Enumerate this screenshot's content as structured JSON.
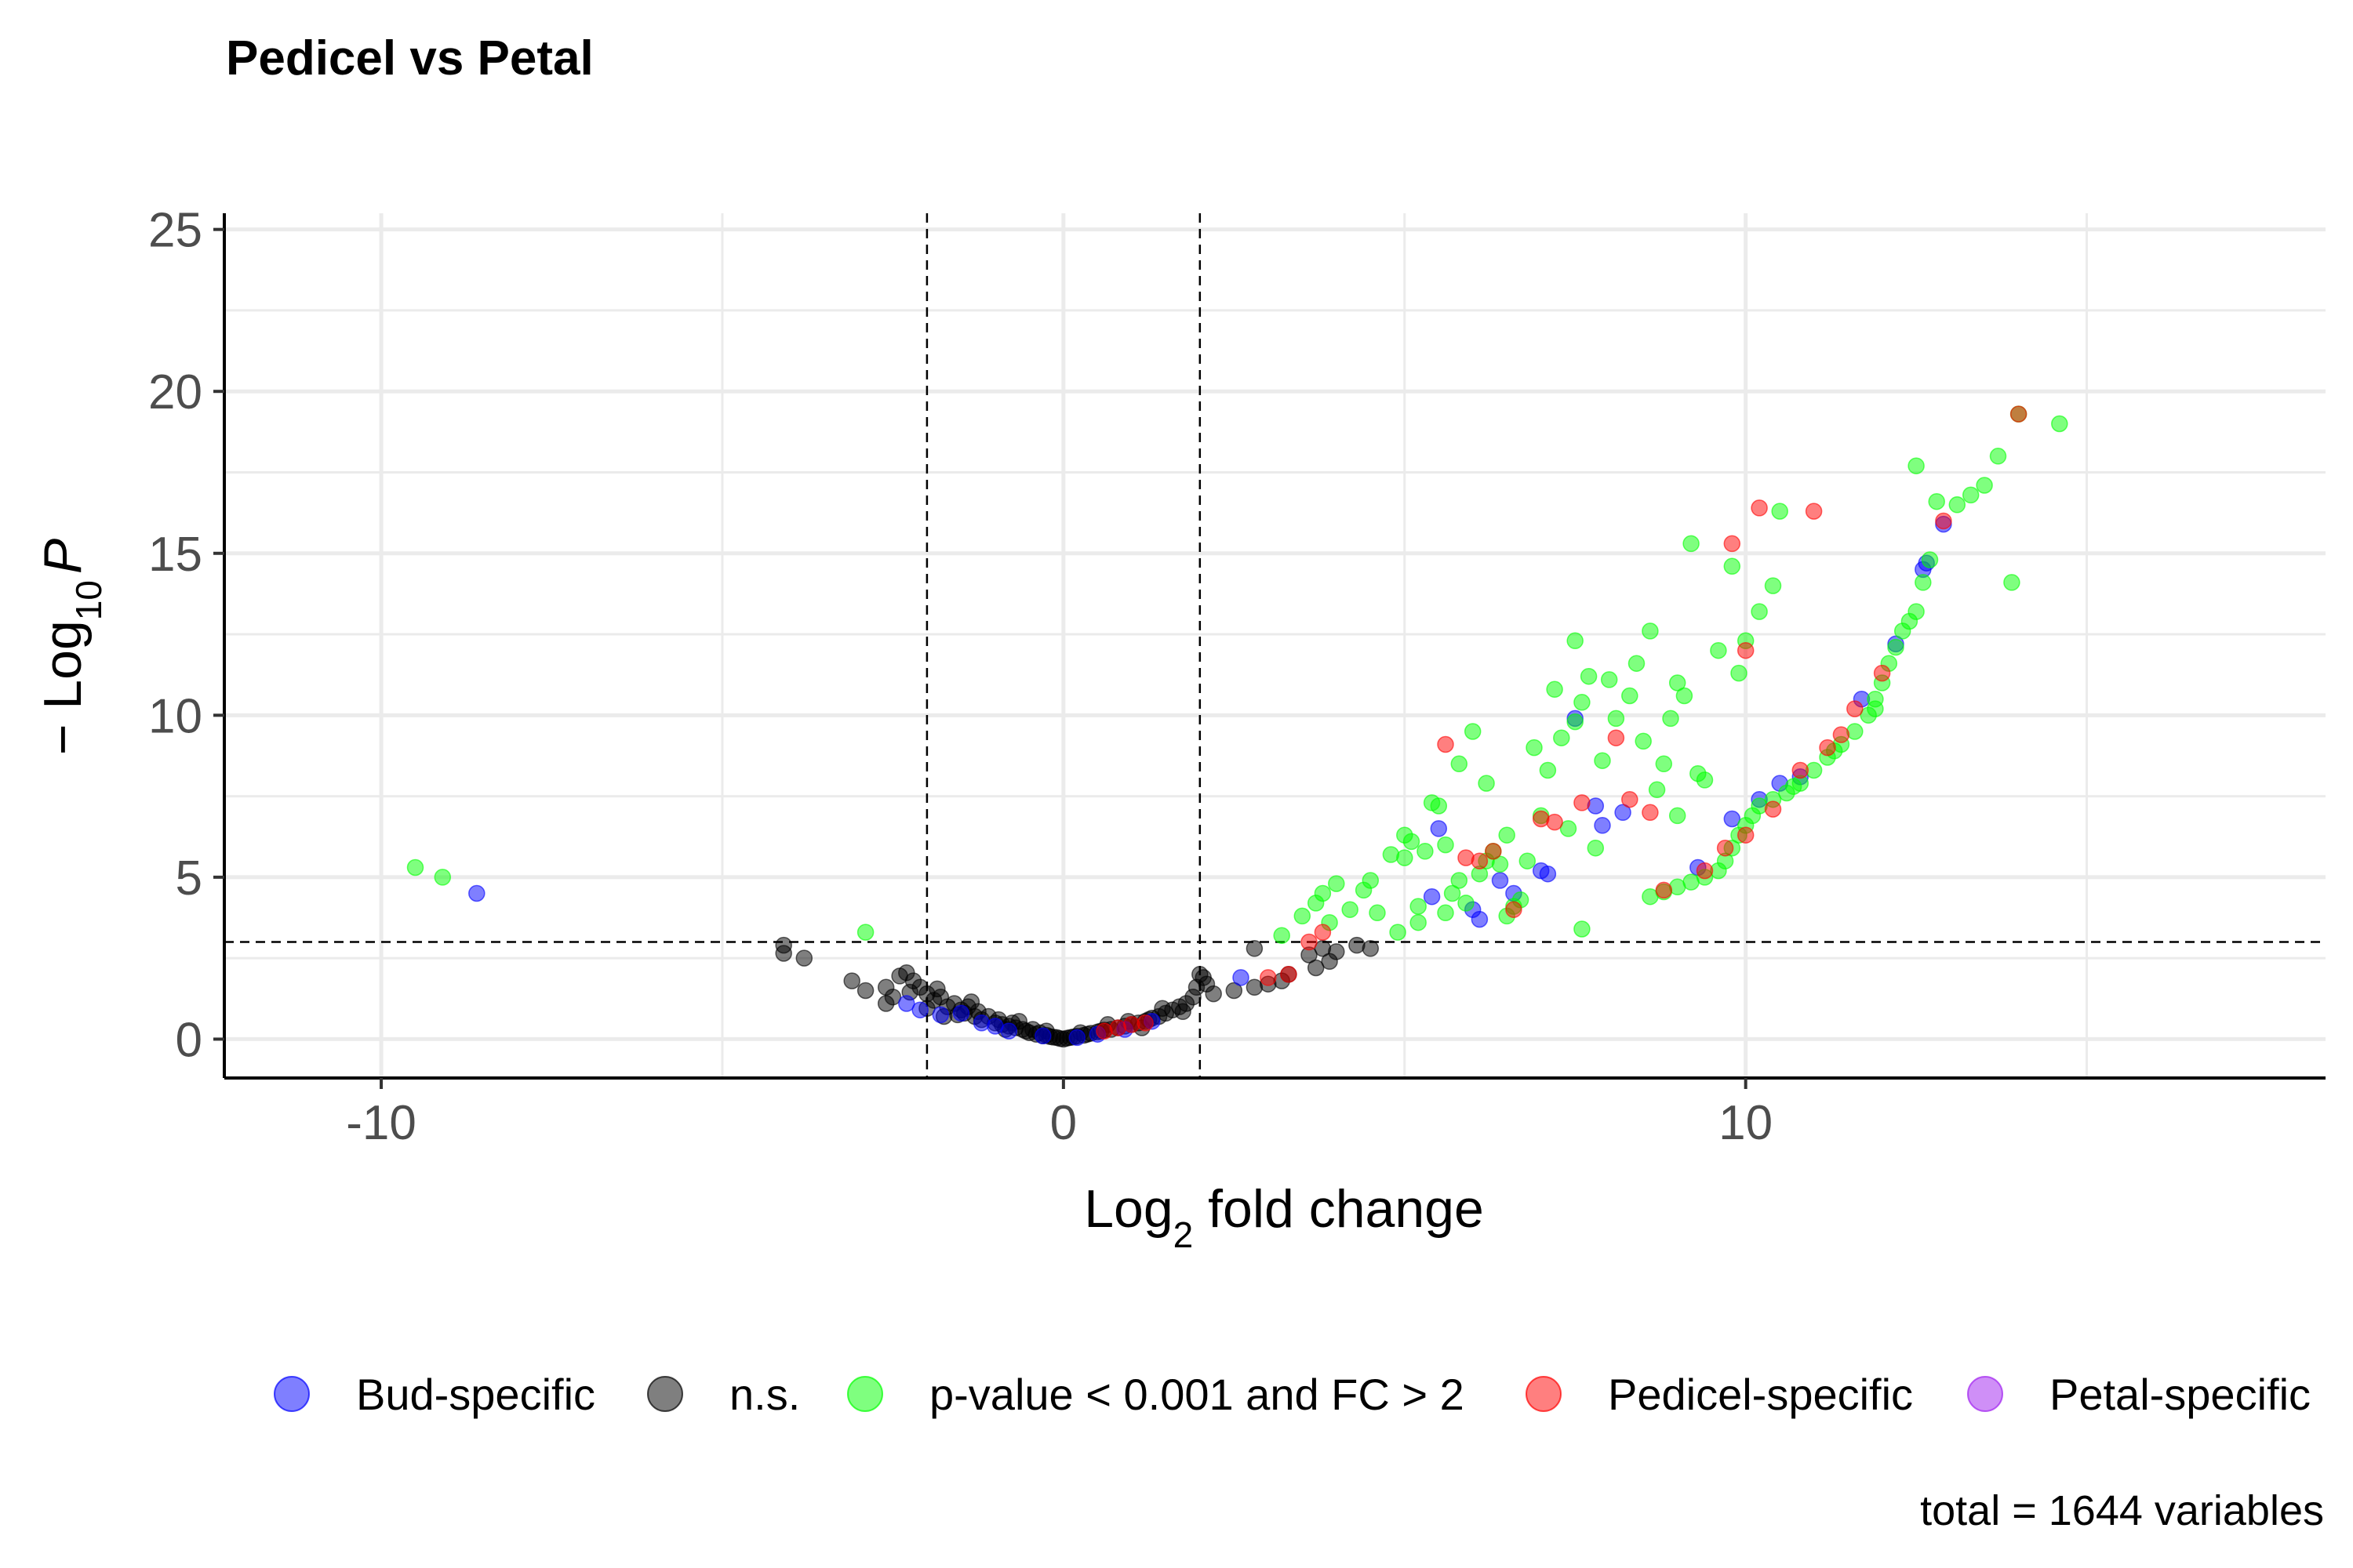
{
  "chart_data": {
    "type": "scatter",
    "title": "Pedicel vs Petal",
    "xlabel": {
      "base": "Log",
      "sub": "2",
      "rest": " fold change"
    },
    "ylabel": {
      "prefix": "− Log",
      "sub": "10",
      "var": "P"
    },
    "xlim": [
      -12.3,
      18.5
    ],
    "ylim": [
      -1.2,
      25.5
    ],
    "x_ticks": [
      -10,
      0,
      10
    ],
    "x_tick_labels": [
      "-10",
      "0",
      "10"
    ],
    "y_ticks": [
      0,
      5,
      10,
      15,
      20,
      25
    ],
    "y_tick_labels": [
      "0",
      "5",
      "10",
      "15",
      "20",
      "25"
    ],
    "grid": true,
    "legend_position": "bottom",
    "caption": "total = 1644 variables",
    "thresholds": {
      "x": [
        -2,
        2
      ],
      "y": 3
    },
    "series": [
      {
        "name": "n.s.",
        "color": "#000000",
        "points": [
          [
            -4.1,
            2.9
          ],
          [
            -4.1,
            2.65
          ],
          [
            -3.8,
            2.5
          ],
          [
            -3.1,
            1.8
          ],
          [
            -2.9,
            1.5
          ],
          [
            -2.6,
            1.6
          ],
          [
            -2.5,
            1.3
          ],
          [
            -2.4,
            1.95
          ],
          [
            -2.3,
            2.05
          ],
          [
            -2.2,
            1.8
          ],
          [
            -2.1,
            1.6
          ],
          [
            -2.0,
            1.4
          ],
          [
            -1.9,
            1.2
          ],
          [
            -1.8,
            1.3
          ],
          [
            -1.7,
            1.0
          ],
          [
            -1.6,
            1.1
          ],
          [
            -1.5,
            0.9
          ],
          [
            -1.45,
            0.8
          ],
          [
            -1.4,
            1.0
          ],
          [
            -1.3,
            0.7
          ],
          [
            -1.25,
            0.85
          ],
          [
            -1.2,
            0.6
          ],
          [
            -1.1,
            0.7
          ],
          [
            -1.0,
            0.5
          ],
          [
            -0.95,
            0.6
          ],
          [
            -0.9,
            0.45
          ],
          [
            -0.8,
            0.4
          ],
          [
            -0.75,
            0.5
          ],
          [
            -0.7,
            0.35
          ],
          [
            -0.6,
            0.3
          ],
          [
            -0.55,
            0.25
          ],
          [
            -0.5,
            0.2
          ],
          [
            -0.45,
            0.3
          ],
          [
            -0.4,
            0.15
          ],
          [
            -0.35,
            0.2
          ],
          [
            -0.3,
            0.1
          ],
          [
            -0.25,
            0.12
          ],
          [
            -0.2,
            0.08
          ],
          [
            -0.15,
            0.06
          ],
          [
            -0.1,
            0.05
          ],
          [
            -0.05,
            0.02
          ],
          [
            0.0,
            0.0
          ],
          [
            0.05,
            0.03
          ],
          [
            0.1,
            0.05
          ],
          [
            0.15,
            0.07
          ],
          [
            0.2,
            0.09
          ],
          [
            0.3,
            0.12
          ],
          [
            0.35,
            0.15
          ],
          [
            0.4,
            0.18
          ],
          [
            0.5,
            0.22
          ],
          [
            0.55,
            0.25
          ],
          [
            0.6,
            0.28
          ],
          [
            0.7,
            0.3
          ],
          [
            0.8,
            0.35
          ],
          [
            0.9,
            0.4
          ],
          [
            1.0,
            0.45
          ],
          [
            1.1,
            0.5
          ],
          [
            1.2,
            0.55
          ],
          [
            1.25,
            0.6
          ],
          [
            1.3,
            0.65
          ],
          [
            1.4,
            0.7
          ],
          [
            1.5,
            0.8
          ],
          [
            1.6,
            0.9
          ],
          [
            1.7,
            1.0
          ],
          [
            1.8,
            1.1
          ],
          [
            1.9,
            1.3
          ],
          [
            1.95,
            1.6
          ],
          [
            2.0,
            2.0
          ],
          [
            2.05,
            1.9
          ],
          [
            2.1,
            1.7
          ],
          [
            2.2,
            1.4
          ],
          [
            2.5,
            1.5
          ],
          [
            2.8,
            1.6
          ],
          [
            3.0,
            1.7
          ],
          [
            3.3,
            2.0
          ],
          [
            3.6,
            2.6
          ],
          [
            3.8,
            2.8
          ],
          [
            4.0,
            2.7
          ],
          [
            4.3,
            2.9
          ],
          [
            4.5,
            2.8
          ],
          [
            -1.35,
            1.15
          ],
          [
            -1.55,
            0.75
          ],
          [
            -0.65,
            0.55
          ],
          [
            -0.85,
            0.3
          ],
          [
            0.65,
            0.45
          ],
          [
            0.95,
            0.55
          ],
          [
            1.15,
            0.35
          ],
          [
            1.45,
            0.95
          ],
          [
            -2.25,
            1.45
          ],
          [
            -1.85,
            1.55
          ],
          [
            2.8,
            2.8
          ],
          [
            3.9,
            2.4
          ],
          [
            3.7,
            2.2
          ],
          [
            3.2,
            1.8
          ],
          [
            -2.6,
            1.1
          ],
          [
            -2.0,
            0.95
          ],
          [
            -1.75,
            0.7
          ],
          [
            0.25,
            0.2
          ],
          [
            -0.25,
            0.25
          ],
          [
            1.75,
            0.85
          ]
        ]
      },
      {
        "name": "Bud-specific",
        "color": "#0000ff",
        "points": [
          [
            -8.6,
            4.5
          ],
          [
            -2.3,
            1.1
          ],
          [
            -2.1,
            0.9
          ],
          [
            -1.8,
            0.75
          ],
          [
            -1.5,
            0.8
          ],
          [
            -1.2,
            0.5
          ],
          [
            -1.0,
            0.4
          ],
          [
            -0.8,
            0.25
          ],
          [
            -0.3,
            0.1
          ],
          [
            0.2,
            0.05
          ],
          [
            0.5,
            0.15
          ],
          [
            0.9,
            0.3
          ],
          [
            1.3,
            0.55
          ],
          [
            2.6,
            1.9
          ],
          [
            5.4,
            4.4
          ],
          [
            5.5,
            6.5
          ],
          [
            6.1,
            3.7
          ],
          [
            6.4,
            4.9
          ],
          [
            6.6,
            4.5
          ],
          [
            7.1,
            5.1
          ],
          [
            7.5,
            9.9
          ],
          [
            7.8,
            7.2
          ],
          [
            7.9,
            6.6
          ],
          [
            8.2,
            7.0
          ],
          [
            9.3,
            5.3
          ],
          [
            9.8,
            6.8
          ],
          [
            10.2,
            7.4
          ],
          [
            10.5,
            7.9
          ],
          [
            10.8,
            8.1
          ],
          [
            11.7,
            10.5
          ],
          [
            12.2,
            12.2
          ],
          [
            12.6,
            14.5
          ],
          [
            12.65,
            14.7
          ],
          [
            12.9,
            15.9
          ],
          [
            6.0,
            4.0
          ],
          [
            7.0,
            5.2
          ]
        ]
      },
      {
        "name": "p-value < 0.001 and FC > 2",
        "color": "#00ff00",
        "points": [
          [
            -9.5,
            5.3
          ],
          [
            -9.1,
            5.0
          ],
          [
            -2.9,
            3.3
          ],
          [
            3.2,
            3.2
          ],
          [
            3.5,
            3.8
          ],
          [
            3.7,
            4.2
          ],
          [
            3.8,
            4.5
          ],
          [
            4.0,
            4.8
          ],
          [
            4.2,
            4.0
          ],
          [
            4.4,
            4.6
          ],
          [
            4.6,
            3.9
          ],
          [
            4.8,
            5.7
          ],
          [
            5.0,
            5.6
          ],
          [
            5.0,
            6.3
          ],
          [
            5.1,
            6.1
          ],
          [
            5.2,
            4.1
          ],
          [
            5.3,
            5.8
          ],
          [
            5.4,
            7.3
          ],
          [
            5.5,
            7.2
          ],
          [
            5.6,
            6.0
          ],
          [
            5.7,
            4.5
          ],
          [
            5.8,
            8.5
          ],
          [
            5.9,
            4.2
          ],
          [
            6.0,
            9.5
          ],
          [
            6.1,
            5.1
          ],
          [
            6.2,
            7.9
          ],
          [
            6.3,
            5.8
          ],
          [
            6.4,
            5.4
          ],
          [
            6.5,
            6.3
          ],
          [
            6.6,
            4.1
          ],
          [
            6.7,
            4.3
          ],
          [
            6.8,
            5.5
          ],
          [
            6.9,
            9.0
          ],
          [
            7.0,
            6.9
          ],
          [
            7.1,
            8.3
          ],
          [
            7.2,
            10.8
          ],
          [
            7.3,
            9.3
          ],
          [
            7.4,
            6.5
          ],
          [
            7.5,
            9.8
          ],
          [
            7.5,
            12.3
          ],
          [
            7.6,
            10.4
          ],
          [
            7.7,
            11.2
          ],
          [
            7.8,
            5.9
          ],
          [
            7.9,
            8.6
          ],
          [
            8.0,
            11.1
          ],
          [
            8.1,
            9.9
          ],
          [
            8.3,
            10.6
          ],
          [
            8.4,
            11.6
          ],
          [
            8.5,
            9.2
          ],
          [
            8.6,
            12.6
          ],
          [
            8.8,
            8.5
          ],
          [
            8.9,
            9.9
          ],
          [
            9.0,
            11.0
          ],
          [
            9.1,
            10.6
          ],
          [
            9.2,
            15.3
          ],
          [
            9.3,
            8.2
          ],
          [
            9.4,
            8.0
          ],
          [
            9.6,
            12.0
          ],
          [
            9.8,
            14.6
          ],
          [
            9.9,
            11.3
          ],
          [
            10.0,
            12.3
          ],
          [
            10.2,
            13.2
          ],
          [
            10.4,
            14.0
          ],
          [
            10.5,
            16.3
          ],
          [
            6.2,
            5.5
          ],
          [
            6.5,
            3.8
          ],
          [
            7.6,
            3.4
          ],
          [
            5.8,
            4.9
          ],
          [
            8.7,
            7.7
          ],
          [
            9.0,
            6.9
          ],
          [
            4.9,
            3.3
          ],
          [
            4.5,
            4.9
          ],
          [
            3.9,
            3.6
          ],
          [
            5.2,
            3.6
          ],
          [
            5.6,
            3.9
          ],
          [
            8.6,
            4.4
          ],
          [
            8.8,
            4.55
          ],
          [
            9.0,
            4.7
          ],
          [
            9.2,
            4.85
          ],
          [
            9.4,
            5.0
          ],
          [
            9.6,
            5.2
          ],
          [
            9.7,
            5.5
          ],
          [
            9.8,
            5.9
          ],
          [
            9.9,
            6.3
          ],
          [
            10.0,
            6.6
          ],
          [
            10.1,
            6.9
          ],
          [
            10.2,
            7.2
          ],
          [
            10.4,
            7.4
          ],
          [
            10.6,
            7.6
          ],
          [
            10.8,
            7.9
          ],
          [
            11.0,
            8.3
          ],
          [
            11.2,
            8.7
          ],
          [
            11.4,
            9.1
          ],
          [
            11.6,
            9.5
          ],
          [
            11.8,
            10.0
          ],
          [
            11.9,
            10.5
          ],
          [
            12.0,
            11.0
          ],
          [
            12.1,
            11.6
          ],
          [
            12.2,
            12.1
          ],
          [
            12.3,
            12.6
          ],
          [
            12.5,
            13.2
          ],
          [
            12.6,
            14.1
          ],
          [
            12.7,
            14.8
          ],
          [
            12.5,
            17.7
          ],
          [
            12.8,
            16.6
          ],
          [
            13.1,
            16.5
          ],
          [
            13.3,
            16.8
          ],
          [
            13.5,
            17.1
          ],
          [
            13.7,
            18.0
          ],
          [
            14.0,
            19.3
          ],
          [
            14.6,
            19.0
          ],
          [
            13.9,
            14.1
          ],
          [
            10.7,
            7.8
          ],
          [
            11.3,
            8.9
          ],
          [
            11.9,
            10.2
          ],
          [
            12.4,
            12.9
          ]
        ]
      },
      {
        "name": "Pedicel-specific",
        "color": "#ff0000",
        "points": [
          [
            0.6,
            0.25
          ],
          [
            0.8,
            0.35
          ],
          [
            1.0,
            0.45
          ],
          [
            1.2,
            0.5
          ],
          [
            3.0,
            1.9
          ],
          [
            3.3,
            2.0
          ],
          [
            3.6,
            3.0
          ],
          [
            3.8,
            3.3
          ],
          [
            5.6,
            9.1
          ],
          [
            5.9,
            5.6
          ],
          [
            6.1,
            5.5
          ],
          [
            6.3,
            5.8
          ],
          [
            6.6,
            4.0
          ],
          [
            7.0,
            6.8
          ],
          [
            7.2,
            6.7
          ],
          [
            7.6,
            7.3
          ],
          [
            8.1,
            9.3
          ],
          [
            8.3,
            7.4
          ],
          [
            8.6,
            7.0
          ],
          [
            9.7,
            5.9
          ],
          [
            9.8,
            15.3
          ],
          [
            10.0,
            6.3
          ],
          [
            10.2,
            16.4
          ],
          [
            11.0,
            16.3
          ],
          [
            10.0,
            12.0
          ],
          [
            10.8,
            8.3
          ],
          [
            11.2,
            9.0
          ],
          [
            11.6,
            10.2
          ],
          [
            12.0,
            11.3
          ],
          [
            12.9,
            16.0
          ],
          [
            14.0,
            19.3
          ],
          [
            8.8,
            4.6
          ],
          [
            9.4,
            5.2
          ],
          [
            10.4,
            7.1
          ],
          [
            11.4,
            9.4
          ]
        ]
      }
    ]
  },
  "legend": [
    {
      "label": "Bud-specific",
      "color": "#0000ff"
    },
    {
      "label": "n.s.",
      "color": "#000000"
    },
    {
      "label": "p-value < 0.001 and FC > 2",
      "color": "#00ff00"
    },
    {
      "label": "Pedicel-specific",
      "color": "#ff0000"
    },
    {
      "label": "Petal-specific",
      "color": "#a020f0"
    }
  ]
}
